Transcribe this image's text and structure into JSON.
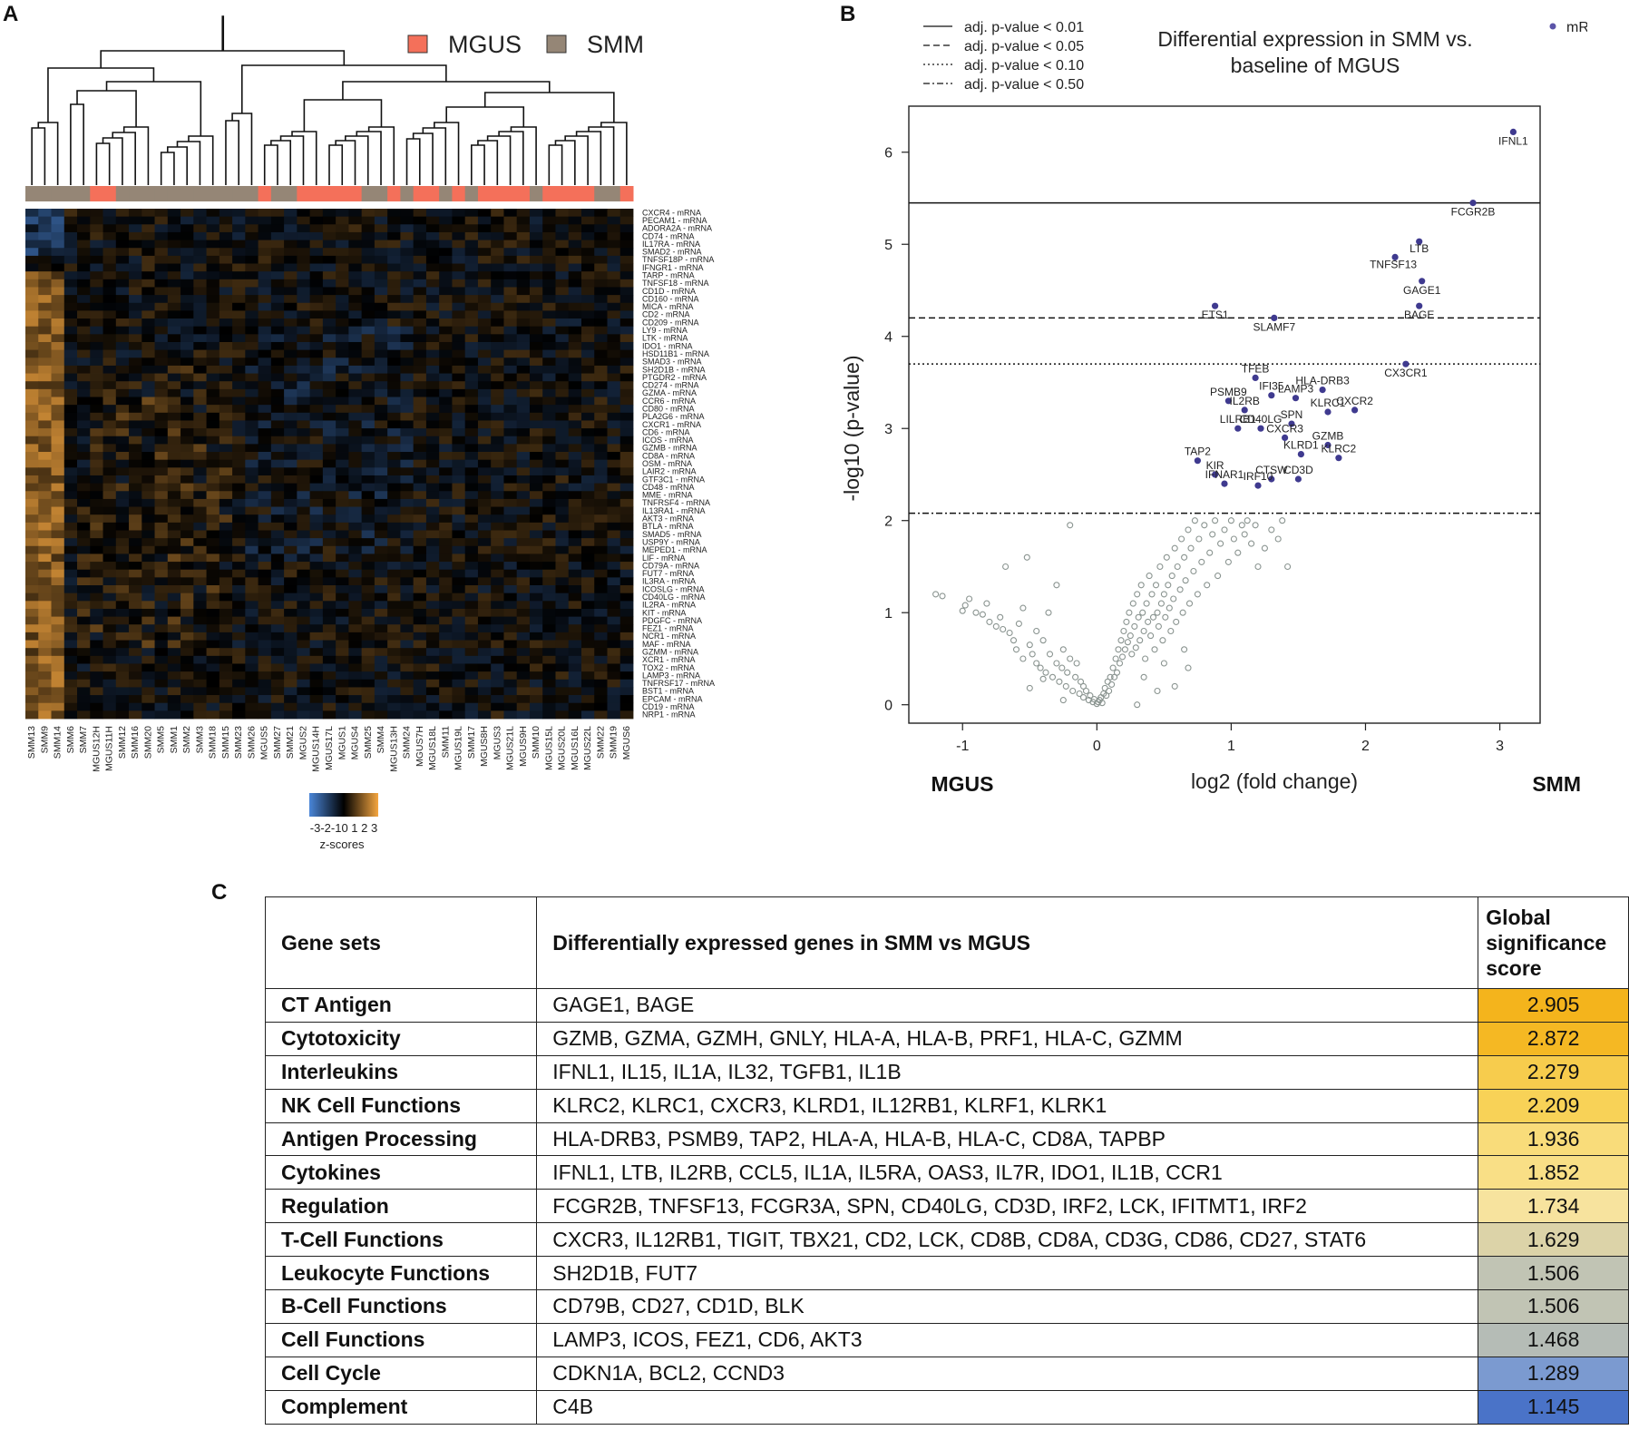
{
  "panels": {
    "a": "A",
    "b": "B",
    "c": "C"
  },
  "heatmap": {
    "legend": [
      {
        "label": "MGUS",
        "color": "#f4705a"
      },
      {
        "label": "SMM",
        "color": "#958676"
      }
    ],
    "samples": [
      "SMM13",
      "SMM9",
      "SMM14",
      "SMM6",
      "SMM7",
      "MGUS12H",
      "MGUS11H",
      "SMM12",
      "SMM16",
      "SMM20",
      "SMM5",
      "SMM1",
      "SMM2",
      "SMM3",
      "SMM18",
      "SMM15",
      "SMM23",
      "SMM26",
      "MGUS5",
      "SMM27",
      "SMM21",
      "MGUS2",
      "MGUS14H",
      "MGUS17L",
      "MGUS1",
      "MGUS4",
      "SMM25",
      "SMM4",
      "MGUS13H",
      "SMM24",
      "MGUS7H",
      "MGUS18L",
      "SMM11",
      "MGUS19L",
      "SMM17",
      "MGUS8H",
      "MGUS3",
      "MGUS21L",
      "MGUS9H",
      "SMM10",
      "MGUS15L",
      "MGUS20L",
      "MGUS16L",
      "MGUS22L",
      "SMM22",
      "SMM19",
      "MGUS6"
    ],
    "genes": [
      "CXCR4 - mRNA",
      "PECAM1 - mRNA",
      "ADORA2A - mRNA",
      "CD74 - mRNA",
      "IL17RA - mRNA",
      "SMAD2 - mRNA",
      "TNFSF18P - mRNA",
      "IFNGR1 - mRNA",
      "TARP - mRNA",
      "TNFSF18 - mRNA",
      "CD1D - mRNA",
      "CD160 - mRNA",
      "MICA - mRNA",
      "CD2 - mRNA",
      "CD209 - mRNA",
      "LY9 - mRNA",
      "LTK - mRNA",
      "IDO1 - mRNA",
      "HSD11B1 - mRNA",
      "SMAD3 - mRNA",
      "SH2D1B - mRNA",
      "PTGDR2 - mRNA",
      "CD274 - mRNA",
      "GZMA - mRNA",
      "CCR6 - mRNA",
      "CD80 - mRNA",
      "PLA2G6 - mRNA",
      "CXCR1 - mRNA",
      "CD6 - mRNA",
      "ICOS - mRNA",
      "GZMB - mRNA",
      "CD8A - mRNA",
      "OSM - mRNA",
      "LAIR2 - mRNA",
      "GTF3C1 - mRNA",
      "CD48 - mRNA",
      "MME - mRNA",
      "TNFRSF4 - mRNA",
      "IL13RA1 - mRNA",
      "AKT3 - mRNA",
      "BTLA - mRNA",
      "SMAD5 - mRNA",
      "USP9Y - mRNA",
      "MEPED1 - mRNA",
      "LIF - mRNA",
      "CD79A - mRNA",
      "FUT7 - mRNA",
      "IL3RA - mRNA",
      "ICOSLG - mRNA",
      "CD40LG - mRNA",
      "IL2RA - mRNA",
      "KIT - mRNA",
      "PDGFC - mRNA",
      "FEZ1 - mRNA",
      "NCR1 - mRNA",
      "MAF - mRNA",
      "GZMM - mRNA",
      "XCR1 - mRNA",
      "TOX2 - mRNA",
      "LAMP3 - mRNA",
      "TNFRSF17 - mRNA",
      "BST1 - mRNA",
      "EPCAM - mRNA",
      "CD19 - mRNA",
      "NRP1 - mRNA"
    ],
    "scale_ticks": "-3-2-10 1 2 3",
    "scale_label": "z-scores"
  },
  "volcano": {
    "title_line1": "Differential expression in SMM vs.",
    "title_line2": "baseline of MGUS",
    "line_legend": [
      "adj. p-value < 0.01",
      "adj. p-value < 0.05",
      "adj. p-value < 0.10",
      "adj. p-value < 0.50"
    ],
    "point_legend": "mRNA",
    "left_label": "MGUS",
    "right_label": "SMM"
  },
  "chart_data": {
    "type": "scatter",
    "title": "Differential expression in SMM vs. baseline of MGUS",
    "xlabel": "log2 (fold change)",
    "ylabel": "-log10 (p-value)",
    "xlim": [
      -1.4,
      3.3
    ],
    "ylim": [
      -0.2,
      6.5
    ],
    "x_ticks": [
      -1,
      0,
      1,
      2,
      3
    ],
    "y_ticks": [
      0,
      1,
      2,
      3,
      4,
      5,
      6
    ],
    "thresholds": [
      {
        "label": "adj. p-value < 0.01",
        "y": 5.45,
        "style": "solid"
      },
      {
        "label": "adj. p-value < 0.05",
        "y": 4.2,
        "style": "dashed"
      },
      {
        "label": "adj. p-value < 0.10",
        "y": 3.7,
        "style": "dotted"
      },
      {
        "label": "adj. p-value < 0.50",
        "y": 2.08,
        "style": "dashdot"
      }
    ],
    "significant": [
      {
        "gene": "IFNL1",
        "x": 3.1,
        "y": 6.22
      },
      {
        "gene": "FCGR2B",
        "x": 2.8,
        "y": 5.45
      },
      {
        "gene": "LTB",
        "x": 2.4,
        "y": 5.03
      },
      {
        "gene": "TNFSF13",
        "x": 2.22,
        "y": 4.86
      },
      {
        "gene": "GAGE1",
        "x": 2.42,
        "y": 4.6
      },
      {
        "gene": "BAGE",
        "x": 2.4,
        "y": 4.33
      },
      {
        "gene": "ETS1",
        "x": 0.88,
        "y": 4.33
      },
      {
        "gene": "SLAMF7",
        "x": 1.32,
        "y": 4.2
      },
      {
        "gene": "CX3CR1",
        "x": 2.3,
        "y": 3.7
      },
      {
        "gene": "TFEB",
        "x": 1.18,
        "y": 3.55
      },
      {
        "gene": "HLA-DRB3",
        "x": 1.68,
        "y": 3.42
      },
      {
        "gene": "IFI35",
        "x": 1.3,
        "y": 3.36
      },
      {
        "gene": "LAMP3",
        "x": 1.48,
        "y": 3.33
      },
      {
        "gene": "PSMB9",
        "x": 0.98,
        "y": 3.3
      },
      {
        "gene": "IL2RB",
        "x": 1.1,
        "y": 3.2
      },
      {
        "gene": "KLRC1",
        "x": 1.72,
        "y": 3.18
      },
      {
        "gene": "CXCR2",
        "x": 1.92,
        "y": 3.2
      },
      {
        "gene": "LILRB1",
        "x": 1.05,
        "y": 3.0
      },
      {
        "gene": "CD40LG",
        "x": 1.22,
        "y": 3.0
      },
      {
        "gene": "SPN",
        "x": 1.45,
        "y": 3.05
      },
      {
        "gene": "CXCR3",
        "x": 1.4,
        "y": 2.9
      },
      {
        "gene": "GZMB",
        "x": 1.72,
        "y": 2.82
      },
      {
        "gene": "KLRD1",
        "x": 1.52,
        "y": 2.72
      },
      {
        "gene": "KLRC2",
        "x": 1.8,
        "y": 2.68
      },
      {
        "gene": "TAP2",
        "x": 0.75,
        "y": 2.65
      },
      {
        "gene": "KIR",
        "x": 0.88,
        "y": 2.5
      },
      {
        "gene": "IFNAR1",
        "x": 0.95,
        "y": 2.4
      },
      {
        "gene": "CTSW",
        "x": 1.3,
        "y": 2.45
      },
      {
        "gene": "CD3D",
        "x": 1.5,
        "y": 2.45
      },
      {
        "gene": "IRF10",
        "x": 1.2,
        "y": 2.38
      }
    ],
    "nonsignificant": [
      [
        -1.2,
        1.2
      ],
      [
        -1.15,
        1.18
      ],
      [
        -1.0,
        1.02
      ],
      [
        -0.98,
        1.08
      ],
      [
        -0.95,
        1.15
      ],
      [
        -0.9,
        1.0
      ],
      [
        -0.85,
        0.98
      ],
      [
        -0.82,
        1.1
      ],
      [
        -0.8,
        0.9
      ],
      [
        -0.75,
        0.85
      ],
      [
        -0.72,
        0.95
      ],
      [
        -0.7,
        0.82
      ],
      [
        -0.68,
        1.5
      ],
      [
        -0.65,
        0.78
      ],
      [
        -0.62,
        0.7
      ],
      [
        -0.6,
        0.6
      ],
      [
        -0.58,
        0.88
      ],
      [
        -0.55,
        1.05
      ],
      [
        -0.55,
        0.5
      ],
      [
        -0.52,
        1.6
      ],
      [
        -0.5,
        0.65
      ],
      [
        -0.48,
        0.55
      ],
      [
        -0.45,
        0.45
      ],
      [
        -0.45,
        0.8
      ],
      [
        -0.42,
        0.4
      ],
      [
        -0.4,
        0.7
      ],
      [
        -0.38,
        0.35
      ],
      [
        -0.36,
        1.0
      ],
      [
        -0.35,
        0.55
      ],
      [
        -0.33,
        0.3
      ],
      [
        -0.3,
        0.45
      ],
      [
        -0.3,
        1.3
      ],
      [
        -0.28,
        0.25
      ],
      [
        -0.26,
        0.4
      ],
      [
        -0.25,
        0.6
      ],
      [
        -0.23,
        0.2
      ],
      [
        -0.22,
        0.35
      ],
      [
        -0.2,
        0.5
      ],
      [
        -0.2,
        1.95
      ],
      [
        -0.18,
        0.15
      ],
      [
        -0.16,
        0.3
      ],
      [
        -0.15,
        0.45
      ],
      [
        -0.13,
        0.12
      ],
      [
        -0.12,
        0.25
      ],
      [
        -0.1,
        0.2
      ],
      [
        -0.1,
        0.08
      ],
      [
        -0.08,
        0.15
      ],
      [
        -0.06,
        0.05
      ],
      [
        -0.05,
        0.1
      ],
      [
        -0.03,
        0.03
      ],
      [
        -0.02,
        0.06
      ],
      [
        0.0,
        0.01
      ],
      [
        0.01,
        0.03
      ],
      [
        0.02,
        0.05
      ],
      [
        0.03,
        0.08
      ],
      [
        0.04,
        0.02
      ],
      [
        0.05,
        0.12
      ],
      [
        0.06,
        0.18
      ],
      [
        0.07,
        0.1
      ],
      [
        0.08,
        0.25
      ],
      [
        0.09,
        0.15
      ],
      [
        0.1,
        0.3
      ],
      [
        0.11,
        0.22
      ],
      [
        0.12,
        0.4
      ],
      [
        0.13,
        0.3
      ],
      [
        0.14,
        0.5
      ],
      [
        0.15,
        0.35
      ],
      [
        0.16,
        0.6
      ],
      [
        0.17,
        0.45
      ],
      [
        0.18,
        0.7
      ],
      [
        0.19,
        0.52
      ],
      [
        0.2,
        0.8
      ],
      [
        0.21,
        0.6
      ],
      [
        0.22,
        0.9
      ],
      [
        0.23,
        0.68
      ],
      [
        0.24,
        1.0
      ],
      [
        0.25,
        0.75
      ],
      [
        0.26,
        0.55
      ],
      [
        0.27,
        1.1
      ],
      [
        0.28,
        0.85
      ],
      [
        0.29,
        0.62
      ],
      [
        0.3,
        1.2
      ],
      [
        0.31,
        0.95
      ],
      [
        0.32,
        0.7
      ],
      [
        0.33,
        1.3
      ],
      [
        0.34,
        1.0
      ],
      [
        0.35,
        0.8
      ],
      [
        0.36,
        0.5
      ],
      [
        0.37,
        1.1
      ],
      [
        0.38,
        0.9
      ],
      [
        0.39,
        1.4
      ],
      [
        0.4,
        0.75
      ],
      [
        0.41,
        1.2
      ],
      [
        0.42,
        0.95
      ],
      [
        0.43,
        0.6
      ],
      [
        0.44,
        1.3
      ],
      [
        0.45,
        1.0
      ],
      [
        0.46,
        0.85
      ],
      [
        0.47,
        1.5
      ],
      [
        0.48,
        1.1
      ],
      [
        0.49,
        0.7
      ],
      [
        0.5,
        1.2
      ],
      [
        0.51,
        0.95
      ],
      [
        0.52,
        1.6
      ],
      [
        0.53,
        1.3
      ],
      [
        0.54,
        1.05
      ],
      [
        0.55,
        0.8
      ],
      [
        0.56,
        1.4
      ],
      [
        0.57,
        1.15
      ],
      [
        0.58,
        1.7
      ],
      [
        0.59,
        0.9
      ],
      [
        0.6,
        1.5
      ],
      [
        0.62,
        1.25
      ],
      [
        0.63,
        1.8
      ],
      [
        0.64,
        1.0
      ],
      [
        0.65,
        1.6
      ],
      [
        0.66,
        1.35
      ],
      [
        0.68,
        1.9
      ],
      [
        0.69,
        1.1
      ],
      [
        0.7,
        1.7
      ],
      [
        0.72,
        1.45
      ],
      [
        0.73,
        2.0
      ],
      [
        0.75,
        1.2
      ],
      [
        0.76,
        1.8
      ],
      [
        0.78,
        1.55
      ],
      [
        0.8,
        1.95
      ],
      [
        0.82,
        1.3
      ],
      [
        0.84,
        1.65
      ],
      [
        0.86,
        1.85
      ],
      [
        0.88,
        2.0
      ],
      [
        0.9,
        1.4
      ],
      [
        0.92,
        1.75
      ],
      [
        0.95,
        1.9
      ],
      [
        0.98,
        1.55
      ],
      [
        1.0,
        2.0
      ],
      [
        1.02,
        1.8
      ],
      [
        1.05,
        1.65
      ],
      [
        1.08,
        1.95
      ],
      [
        1.1,
        1.85
      ],
      [
        1.12,
        2.0
      ],
      [
        1.15,
        1.75
      ],
      [
        1.18,
        1.95
      ],
      [
        1.2,
        1.5
      ],
      [
        1.25,
        1.7
      ],
      [
        1.3,
        1.9
      ],
      [
        1.35,
        1.8
      ],
      [
        1.38,
        2.0
      ],
      [
        1.42,
        1.5
      ],
      [
        0.68,
        0.4
      ],
      [
        0.58,
        0.2
      ],
      [
        0.45,
        0.15
      ],
      [
        0.3,
        0.0
      ],
      [
        0.35,
        0.3
      ],
      [
        0.5,
        0.45
      ],
      [
        0.65,
        0.6
      ],
      [
        -0.4,
        0.28
      ],
      [
        -0.5,
        0.18
      ],
      [
        -0.25,
        0.05
      ]
    ]
  },
  "gene_table": {
    "headers": [
      "Gene sets",
      "Differentially expressed genes in SMM vs MGUS",
      "Global significance score"
    ],
    "rows": [
      {
        "set": "CT Antigen",
        "genes": "GAGE1, BAGE",
        "score": "2.905",
        "color": "#f4b41c"
      },
      {
        "set": "Cytotoxicity",
        "genes": "GZMB, GZMA, GZMH, GNLY, HLA-A, HLA-B, PRF1, HLA-C, GZMM",
        "score": "2.872",
        "color": "#f5b823"
      },
      {
        "set": "Interleukins",
        "genes": "IFNL1, IL15, IL1A, IL32, TGFB1, IL1B",
        "score": "2.279",
        "color": "#f7cc4d"
      },
      {
        "set": "NK Cell Functions",
        "genes": "KLRC2, KLRC1, CXCR3, KLRD1, IL12RB1, KLRF1, KLRK1",
        "score": "2.209",
        "color": "#f8d257"
      },
      {
        "set": "Antigen Processing",
        "genes": "HLA-DRB3, PSMB9, TAP2, HLA-A, HLA-B, HLA-C, CD8A, TAPBP",
        "score": "1.936",
        "color": "#f9dc7a"
      },
      {
        "set": "Cytokines",
        "genes": "IFNL1, LTB, IL2RB, CCL5, IL1A, IL5RA, OAS3, IL7R, IDO1, IL1B, CCR1",
        "score": "1.852",
        "color": "#f9df86"
      },
      {
        "set": "Regulation",
        "genes": "FCGR2B, TNFSF13, FCGR3A, SPN, CD40LG,  CD3D, IRF2, LCK, IFITMT1, IRF2",
        "score": "1.734",
        "color": "#f7e39e"
      },
      {
        "set": "T-Cell Functions",
        "genes": "CXCR3, IL12RB1, TIGIT, TBX21, CD2, LCK, CD8B, CD8A, CD3G, CD86, CD27, STAT6",
        "score": "1.629",
        "color": "#dcd3a8"
      },
      {
        "set": "Leukocyte Functions",
        "genes": "SH2D1B, FUT7",
        "score": "1.506",
        "color": "#c1c4b4"
      },
      {
        "set": "B-Cell Functions",
        "genes": "CD79B, CD27, CD1D, BLK",
        "score": "1.506",
        "color": "#c1c4b4"
      },
      {
        "set": "Cell Functions",
        "genes": "LAMP3, ICOS, FEZ1, CD6, AKT3",
        "score": "1.468",
        "color": "#b5bcb6"
      },
      {
        "set": "Cell Cycle",
        "genes": "CDKN1A, BCL2, CCND3",
        "score": "1.289",
        "color": "#7b9ad0"
      },
      {
        "set": "Complement",
        "genes": "C4B",
        "score": "1.145",
        "color": "#4a73c8"
      }
    ]
  }
}
